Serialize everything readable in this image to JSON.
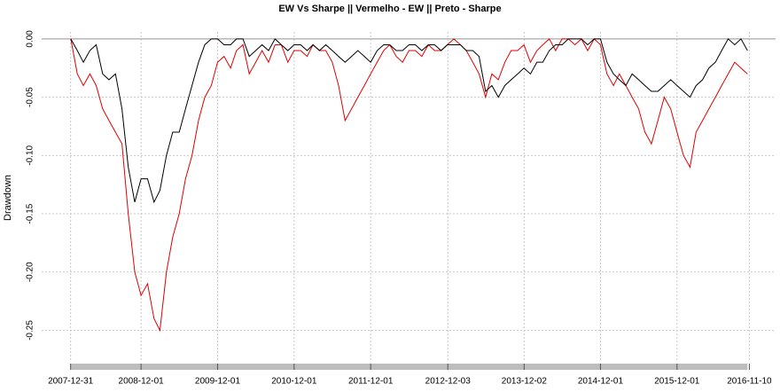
{
  "chart_data": {
    "type": "line",
    "title": "EW Vs Sharpe || Vermelho - EW || Preto - Sharpe",
    "y_label": "Drawdown",
    "x": [
      "2008-01-01",
      "2008-02-01",
      "2008-03-01",
      "2008-04-01",
      "2008-05-01",
      "2008-06-01",
      "2008-07-01",
      "2008-08-01",
      "2008-09-01",
      "2008-10-01",
      "2008-11-01",
      "2008-12-01",
      "2009-01-01",
      "2009-02-01",
      "2009-03-01",
      "2009-04-01",
      "2009-05-01",
      "2009-06-01",
      "2009-07-01",
      "2009-08-01",
      "2009-09-01",
      "2009-10-01",
      "2009-11-01",
      "2009-12-01",
      "2010-01-01",
      "2010-02-01",
      "2010-03-01",
      "2010-04-01",
      "2010-05-01",
      "2010-06-01",
      "2010-07-01",
      "2010-08-01",
      "2010-09-01",
      "2010-10-01",
      "2010-11-01",
      "2010-12-01",
      "2011-01-01",
      "2011-02-01",
      "2011-03-01",
      "2011-04-01",
      "2011-05-01",
      "2011-06-01",
      "2011-07-01",
      "2011-08-01",
      "2011-09-01",
      "2011-10-01",
      "2011-11-01",
      "2011-12-01",
      "2012-01-01",
      "2012-02-01",
      "2012-03-01",
      "2012-04-01",
      "2012-05-01",
      "2012-06-01",
      "2012-07-01",
      "2012-08-01",
      "2012-09-01",
      "2012-10-01",
      "2012-11-01",
      "2012-12-01",
      "2013-01-01",
      "2013-02-01",
      "2013-03-01",
      "2013-04-01",
      "2013-05-01",
      "2013-06-01",
      "2013-07-01",
      "2013-08-01",
      "2013-09-01",
      "2013-10-01",
      "2013-11-01",
      "2013-12-01",
      "2014-01-01",
      "2014-02-01",
      "2014-03-01",
      "2014-04-01",
      "2014-05-01",
      "2014-06-01",
      "2014-07-01",
      "2014-08-01",
      "2014-09-01",
      "2014-10-01",
      "2014-11-01",
      "2014-12-01",
      "2015-01-01",
      "2015-02-01",
      "2015-03-01",
      "2015-04-01",
      "2015-05-01",
      "2015-06-01",
      "2015-07-01",
      "2015-08-01",
      "2015-09-01",
      "2015-10-01",
      "2015-11-01",
      "2015-12-01",
      "2016-01-01",
      "2016-02-01",
      "2016-03-01",
      "2016-04-01",
      "2016-05-01",
      "2016-06-01",
      "2016-07-01",
      "2016-08-01",
      "2016-09-01",
      "2016-10-01",
      "2016-11-01"
    ],
    "series": [
      {
        "color": "#000000",
        "values": [
          0,
          -0.01,
          -0.02,
          -0.01,
          -0.005,
          -0.03,
          -0.035,
          -0.03,
          -0.06,
          -0.11,
          -0.14,
          -0.12,
          -0.12,
          -0.14,
          -0.13,
          -0.1,
          -0.08,
          -0.08,
          -0.06,
          -0.04,
          -0.02,
          -0.005,
          0,
          0,
          -0.005,
          -0.005,
          0,
          0,
          -0.015,
          -0.01,
          -0.005,
          -0.01,
          0,
          -0.005,
          -0.01,
          -0.005,
          -0.005,
          -0.01,
          -0.005,
          -0.01,
          -0.005,
          -0.01,
          -0.015,
          -0.02,
          -0.015,
          -0.01,
          -0.015,
          -0.02,
          -0.01,
          -0.005,
          -0.005,
          -0.01,
          -0.01,
          -0.005,
          -0.005,
          -0.01,
          -0.005,
          -0.005,
          -0.01,
          -0.005,
          -0.005,
          -0.005,
          -0.01,
          -0.01,
          -0.015,
          -0.045,
          -0.04,
          -0.05,
          -0.04,
          -0.035,
          -0.03,
          -0.025,
          -0.03,
          -0.02,
          -0.02,
          -0.01,
          -0.005,
          -0.005,
          0,
          0,
          0,
          -0.005,
          0,
          0,
          -0.02,
          -0.03,
          -0.035,
          -0.04,
          -0.03,
          -0.035,
          -0.04,
          -0.045,
          -0.045,
          -0.04,
          -0.035,
          -0.04,
          -0.045,
          -0.05,
          -0.04,
          -0.035,
          -0.025,
          -0.02,
          -0.01,
          0,
          -0.005,
          0,
          -0.01
        ]
      },
      {
        "color": "#e00000",
        "values": [
          0,
          -0.03,
          -0.04,
          -0.03,
          -0.04,
          -0.06,
          -0.07,
          -0.08,
          -0.09,
          -0.15,
          -0.2,
          -0.22,
          -0.21,
          -0.24,
          -0.25,
          -0.2,
          -0.17,
          -0.15,
          -0.12,
          -0.1,
          -0.07,
          -0.05,
          -0.04,
          -0.02,
          -0.015,
          -0.025,
          -0.01,
          -0.005,
          -0.03,
          -0.02,
          -0.01,
          -0.02,
          -0.005,
          -0.005,
          -0.02,
          -0.01,
          -0.01,
          -0.015,
          -0.005,
          -0.01,
          -0.01,
          -0.02,
          -0.04,
          -0.07,
          -0.06,
          -0.05,
          -0.04,
          -0.03,
          -0.02,
          -0.01,
          -0.005,
          -0.015,
          -0.02,
          -0.01,
          -0.01,
          -0.015,
          -0.005,
          -0.01,
          -0.01,
          -0.005,
          0,
          -0.005,
          -0.01,
          -0.02,
          -0.03,
          -0.05,
          -0.03,
          -0.035,
          -0.02,
          -0.01,
          -0.01,
          -0.005,
          -0.02,
          -0.01,
          -0.005,
          0,
          -0.01,
          0,
          0,
          -0.005,
          0,
          -0.01,
          0,
          -0.005,
          -0.03,
          -0.04,
          -0.03,
          -0.04,
          -0.05,
          -0.06,
          -0.08,
          -0.09,
          -0.07,
          -0.05,
          -0.06,
          -0.08,
          -0.1,
          -0.11,
          -0.08,
          -0.07,
          -0.06,
          -0.05,
          -0.04,
          -0.03,
          -0.02,
          -0.025,
          -0.03
        ]
      }
    ],
    "xlim": [
      "2007-08-15",
      "2017-03-15"
    ],
    "xticks": [
      "2007-12-31",
      "2008-12-01",
      "2009-12-01",
      "2010-12-01",
      "2011-12-01",
      "2012-12-03",
      "2013-12-02",
      "2014-12-01",
      "2015-12-01",
      "2016-11-10"
    ],
    "ylim": [
      -0.277,
      0.006
    ],
    "yticks": [
      {
        "value": 0,
        "label": "0.00"
      },
      {
        "value": -0.05,
        "label": "-0.05"
      },
      {
        "value": -0.1,
        "label": "-0.10"
      },
      {
        "value": -0.15,
        "label": "-0.15"
      },
      {
        "value": -0.2,
        "label": "-0.20"
      },
      {
        "value": -0.25,
        "label": "-0.25"
      }
    ],
    "grid": true
  }
}
